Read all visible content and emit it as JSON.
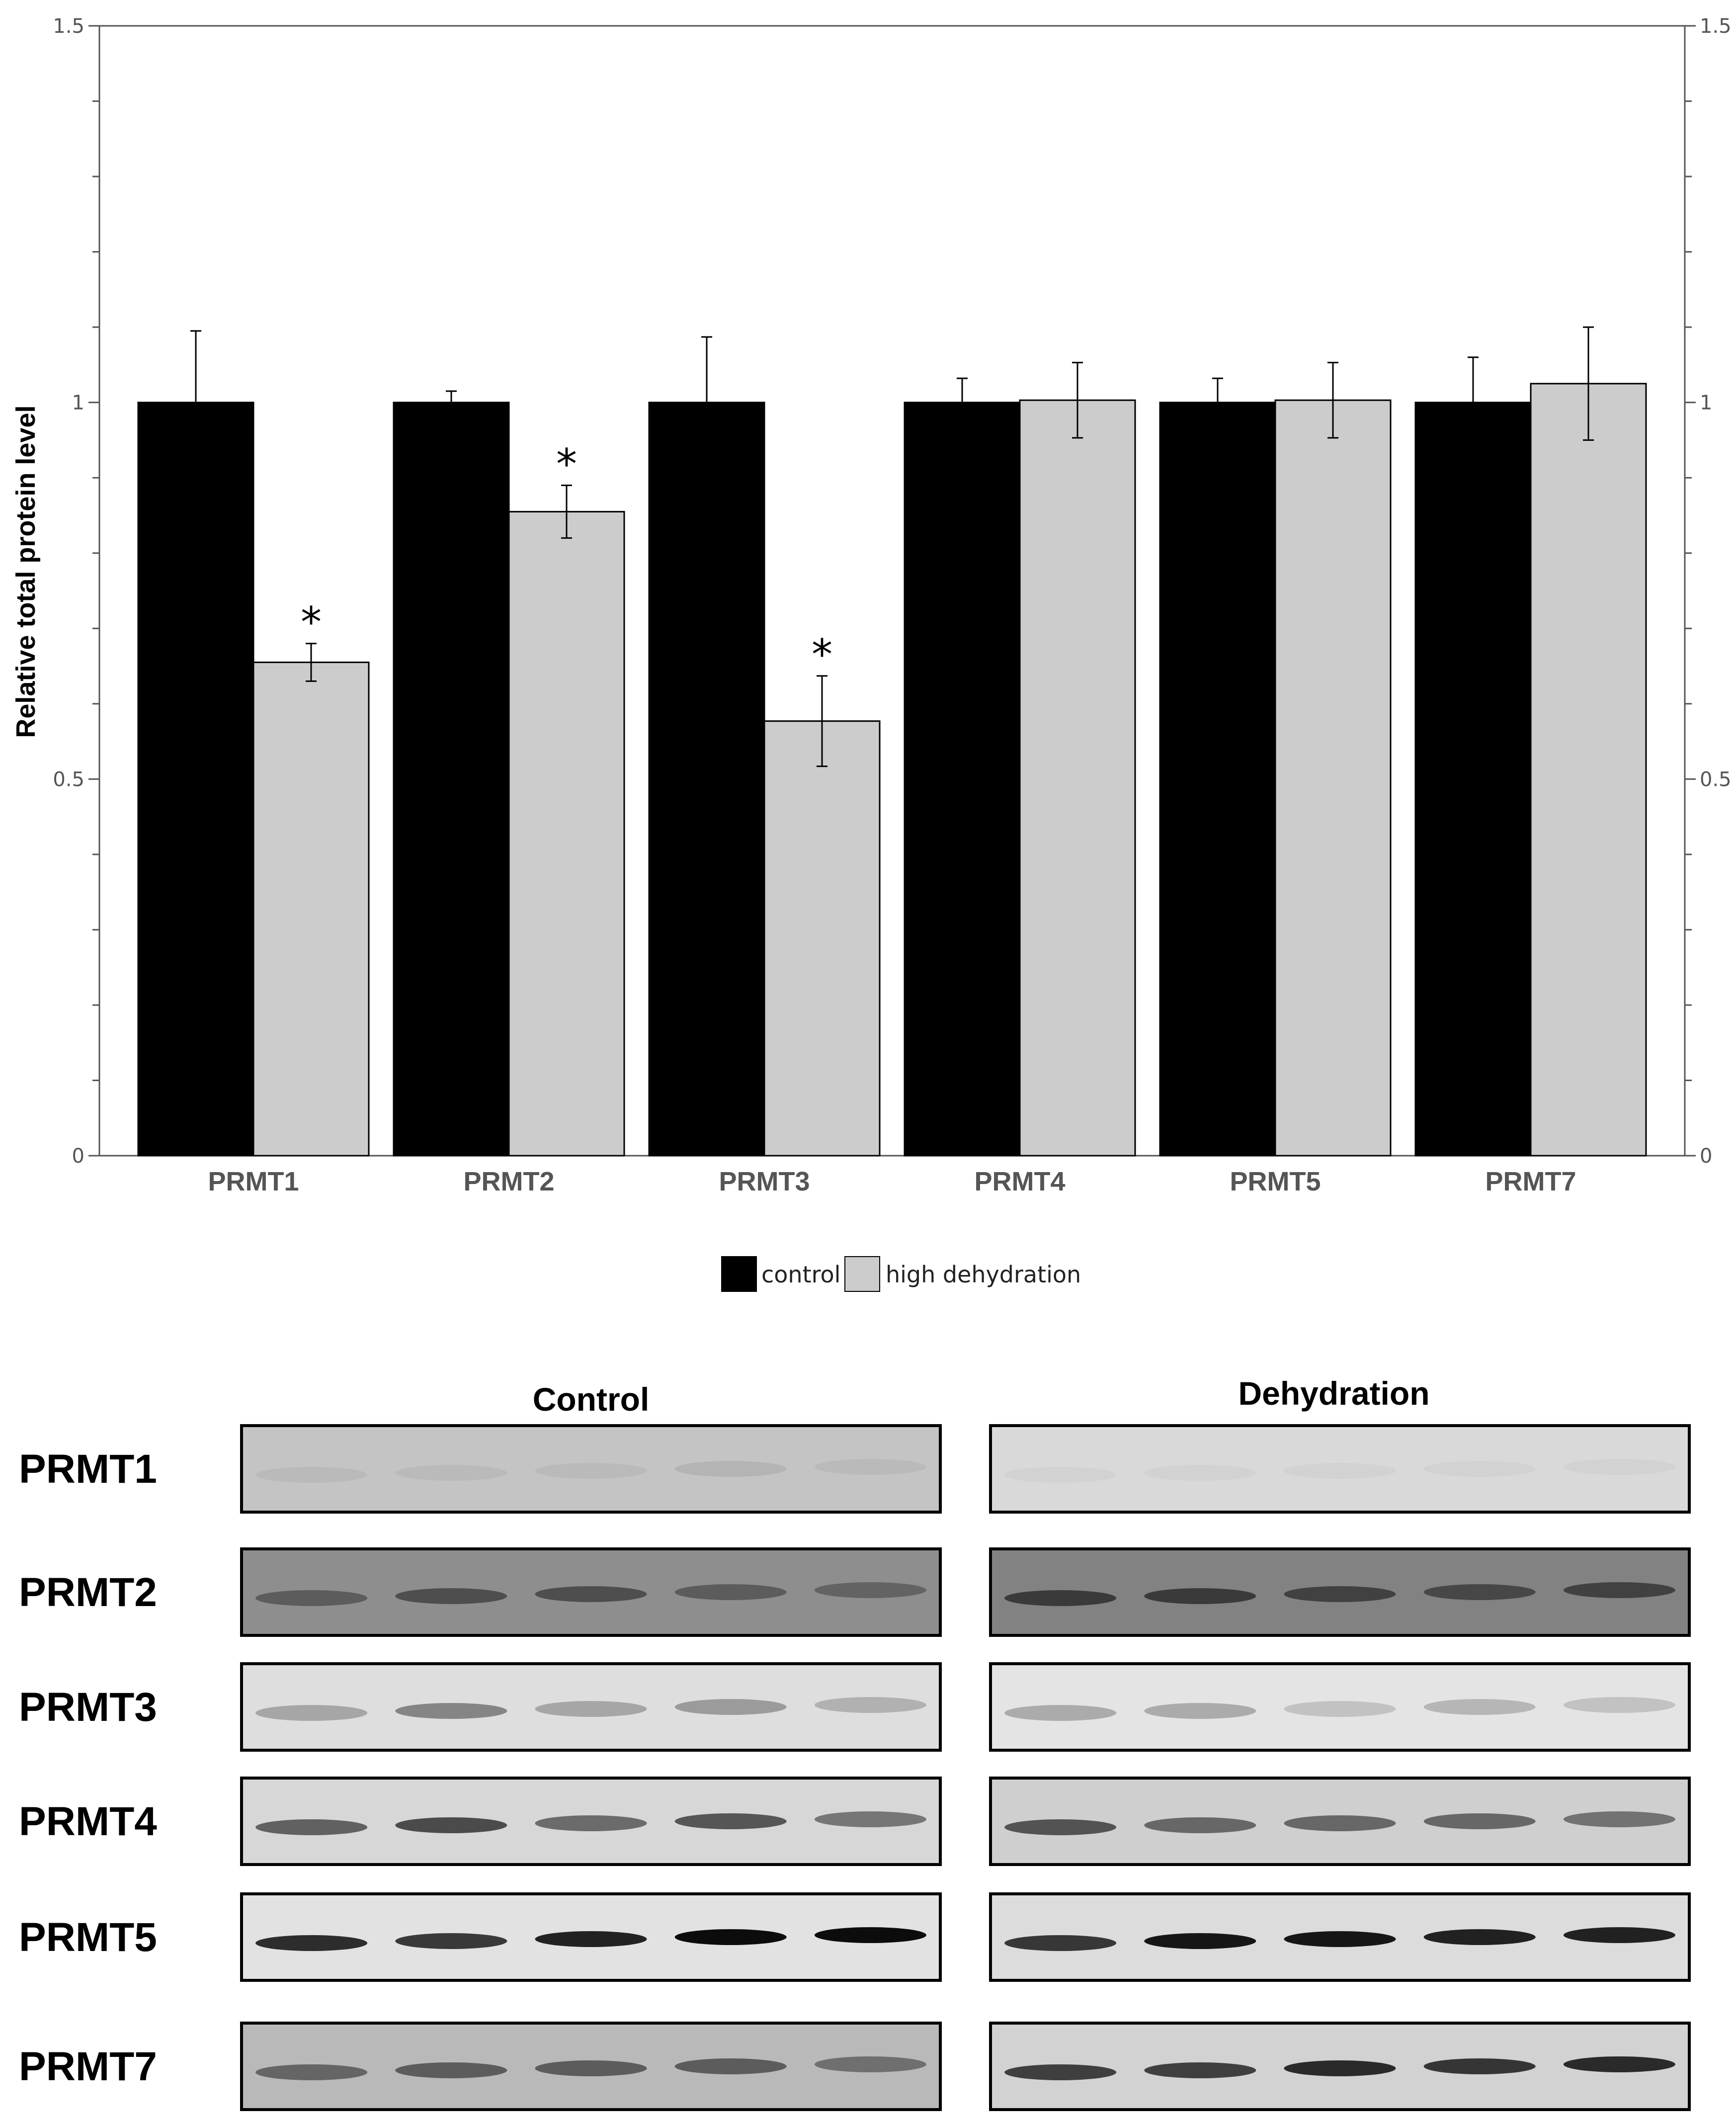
{
  "chart_data": {
    "type": "bar",
    "ylabel": "Relative total protein level",
    "xlabel": "",
    "ylim": [
      0,
      1.5
    ],
    "yticks": [
      "0",
      "0.5",
      "1",
      "1.5"
    ],
    "y_axes": "left-and-right",
    "categories": [
      "PRMT1",
      "PRMT2",
      "PRMT3",
      "PRMT4",
      "PRMT5",
      "PRMT7"
    ],
    "series": [
      {
        "name": "control",
        "color": "#000000",
        "values": [
          1.0,
          1.0,
          1.0,
          1.0,
          1.0,
          1.0
        ],
        "errors": [
          0.095,
          0.015,
          0.087,
          0.032,
          0.032,
          0.06
        ]
      },
      {
        "name": "high dehydration",
        "color": "#cccccc",
        "values": [
          0.655,
          0.855,
          0.577,
          1.003,
          1.003,
          1.025
        ],
        "errors": [
          0.025,
          0.035,
          0.06,
          0.05,
          0.05,
          0.075
        ]
      }
    ],
    "significance_marks": [
      {
        "category": "PRMT1",
        "series": "high dehydration",
        "label": "*"
      },
      {
        "category": "PRMT2",
        "series": "high dehydration",
        "label": "*"
      },
      {
        "category": "PRMT3",
        "series": "high dehydration",
        "label": "*"
      }
    ],
    "legend": {
      "position": "bottom-center"
    }
  },
  "western_blots": {
    "group_titles": [
      "Control",
      "Dehydration"
    ],
    "lanes_per_group": 5,
    "rows": [
      {
        "label": "PRMT1",
        "bg": [
          "#c4c4c4",
          "#d9d9d9"
        ],
        "band_opacity": [
          [
            0.05,
            0.05,
            0.05,
            0.08,
            0.05
          ],
          [
            0.03,
            0.03,
            0.03,
            0.03,
            0.03
          ]
        ]
      },
      {
        "label": "PRMT2",
        "bg": [
          "#8e8e8e",
          "#828282"
        ],
        "band_opacity": [
          [
            0.35,
            0.45,
            0.45,
            0.35,
            0.3
          ],
          [
            0.55,
            0.55,
            0.5,
            0.45,
            0.5
          ]
        ]
      },
      {
        "label": "PRMT3",
        "bg": [
          "#dedede",
          "#e4e4e4"
        ],
        "band_opacity": [
          [
            0.25,
            0.4,
            0.25,
            0.3,
            0.2
          ],
          [
            0.25,
            0.25,
            0.15,
            0.2,
            0.15
          ]
        ]
      },
      {
        "label": "PRMT4",
        "bg": [
          "#d7d7d7",
          "#cfcfcf"
        ],
        "band_opacity": [
          [
            0.55,
            0.65,
            0.5,
            0.6,
            0.45
          ],
          [
            0.6,
            0.5,
            0.5,
            0.5,
            0.45
          ]
        ]
      },
      {
        "label": "PRMT5",
        "bg": [
          "#e2e2e2",
          "#dcdcdc"
        ],
        "band_opacity": [
          [
            0.8,
            0.75,
            0.85,
            0.95,
            0.95
          ],
          [
            0.75,
            0.9,
            0.9,
            0.85,
            0.85
          ]
        ]
      },
      {
        "label": "PRMT7",
        "bg": [
          "#b9b9b9",
          "#d2d2d2"
        ],
        "band_opacity": [
          [
            0.45,
            0.5,
            0.5,
            0.5,
            0.4
          ],
          [
            0.7,
            0.7,
            0.8,
            0.75,
            0.8
          ]
        ]
      }
    ]
  }
}
